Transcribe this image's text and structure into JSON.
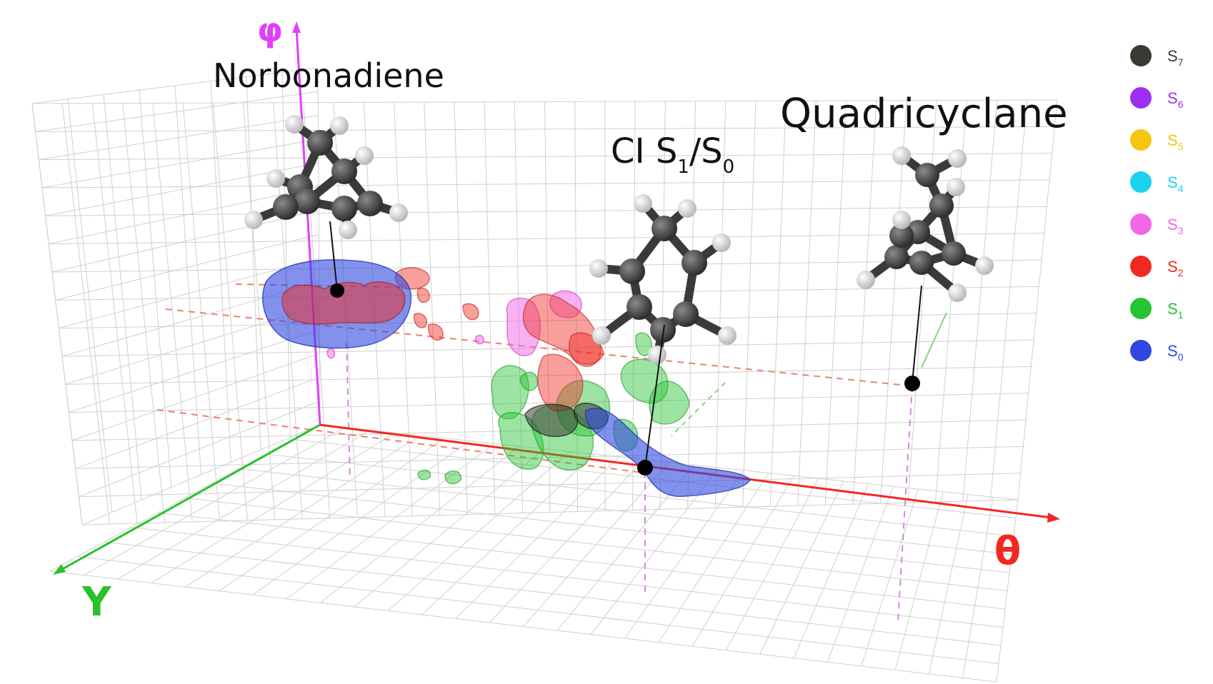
{
  "axes": {
    "phi": {
      "label": "φ",
      "color": "#e040fb"
    },
    "theta": {
      "label": "θ",
      "color": "#f2281f"
    },
    "y": {
      "label": "Y",
      "color": "#29c22a"
    }
  },
  "annotations": {
    "norbonadiene": "Norbonadiene",
    "ci": {
      "prefix": "CI S",
      "sub1": "1",
      "mid": "/S",
      "sub0": "0"
    },
    "quadricyclane": "Quadricyclane"
  },
  "legend": [
    {
      "label": "S",
      "sub": "7",
      "color": "#3a3a33"
    },
    {
      "label": "S",
      "sub": "6",
      "color": "#9b30f0"
    },
    {
      "label": "S",
      "sub": "5",
      "color": "#f4c512"
    },
    {
      "label": "S",
      "sub": "4",
      "color": "#1ad2ee"
    },
    {
      "label": "S",
      "sub": "3",
      "color": "#f266e8"
    },
    {
      "label": "S",
      "sub": "2",
      "color": "#f02a22"
    },
    {
      "label": "S",
      "sub": "1",
      "color": "#25c432"
    },
    {
      "label": "S",
      "sub": "0",
      "color": "#2f47e0"
    }
  ],
  "colors": {
    "grid": "#cfcfcf",
    "guide_pink": "#d08ad6",
    "guide_red": "#f07d72",
    "carbon": "#404040",
    "hydrogen": "#d8d8d8"
  }
}
